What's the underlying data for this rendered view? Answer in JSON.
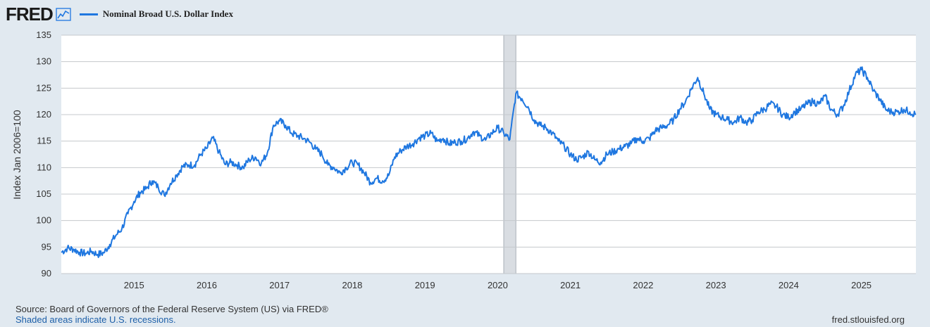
{
  "header": {
    "logo_text": "FRED",
    "logo_icon": "line-chart-icon",
    "series_label": "Nominal Broad U.S. Dollar Index"
  },
  "colors": {
    "series": "#1f77e0",
    "recession": "#d9dde2",
    "background": "#e1e9f0",
    "plot": "#ffffff",
    "grid": "#c4c8cc"
  },
  "footer": {
    "source": "Source: Board of Governors of the Federal Reserve System (US) via FRED®",
    "recession_note": "Shaded areas indicate U.S. recessions.",
    "site": "fred.stlouisfed.org"
  },
  "chart_data": {
    "type": "line",
    "title": "",
    "xlabel": "",
    "ylabel": "Index Jan 2006=100",
    "ylim": [
      90,
      135
    ],
    "xlim": [
      "2014-01",
      "2025-10"
    ],
    "yticks": [
      "90",
      "95",
      "100",
      "105",
      "110",
      "115",
      "120",
      "125",
      "130",
      "135"
    ],
    "xticks": [
      "2015",
      "2016",
      "2017",
      "2018",
      "2019",
      "2020",
      "2021",
      "2022",
      "2023",
      "2024",
      "2025"
    ],
    "grid": true,
    "legend_position": "top-left",
    "recessions": [
      {
        "start": "2020-02",
        "end": "2020-04"
      }
    ],
    "series": [
      {
        "name": "Nominal Broad U.S. Dollar Index",
        "x": [
          "2014-01",
          "2014-02",
          "2014-03",
          "2014-04",
          "2014-05",
          "2014-06",
          "2014-07",
          "2014-08",
          "2014-09",
          "2014-10",
          "2014-11",
          "2014-12",
          "2015-01",
          "2015-02",
          "2015-03",
          "2015-04",
          "2015-05",
          "2015-06",
          "2015-07",
          "2015-08",
          "2015-09",
          "2015-10",
          "2015-11",
          "2015-12",
          "2016-01",
          "2016-02",
          "2016-03",
          "2016-04",
          "2016-05",
          "2016-06",
          "2016-07",
          "2016-08",
          "2016-09",
          "2016-10",
          "2016-11",
          "2016-12",
          "2017-01",
          "2017-02",
          "2017-03",
          "2017-04",
          "2017-05",
          "2017-06",
          "2017-07",
          "2017-08",
          "2017-09",
          "2017-10",
          "2017-11",
          "2017-12",
          "2018-01",
          "2018-02",
          "2018-03",
          "2018-04",
          "2018-05",
          "2018-06",
          "2018-07",
          "2018-08",
          "2018-09",
          "2018-10",
          "2018-11",
          "2018-12",
          "2019-01",
          "2019-02",
          "2019-03",
          "2019-04",
          "2019-05",
          "2019-06",
          "2019-07",
          "2019-08",
          "2019-09",
          "2019-10",
          "2019-11",
          "2019-12",
          "2020-01",
          "2020-02",
          "2020-03",
          "2020-04",
          "2020-05",
          "2020-06",
          "2020-07",
          "2020-08",
          "2020-09",
          "2020-10",
          "2020-11",
          "2020-12",
          "2021-01",
          "2021-02",
          "2021-03",
          "2021-04",
          "2021-05",
          "2021-06",
          "2021-07",
          "2021-08",
          "2021-09",
          "2021-10",
          "2021-11",
          "2021-12",
          "2022-01",
          "2022-02",
          "2022-03",
          "2022-04",
          "2022-05",
          "2022-06",
          "2022-07",
          "2022-08",
          "2022-09",
          "2022-10",
          "2022-11",
          "2022-12",
          "2023-01",
          "2023-02",
          "2023-03",
          "2023-04",
          "2023-05",
          "2023-06",
          "2023-07",
          "2023-08",
          "2023-09",
          "2023-10",
          "2023-11",
          "2023-12",
          "2024-01",
          "2024-02",
          "2024-03",
          "2024-04",
          "2024-05",
          "2024-06",
          "2024-07",
          "2024-08",
          "2024-09",
          "2024-10",
          "2024-11",
          "2024-12",
          "2025-01",
          "2025-02",
          "2025-03",
          "2025-04",
          "2025-05",
          "2025-06",
          "2025-07",
          "2025-08",
          "2025-09",
          "2025-10"
        ],
        "values": [
          94.0,
          94.8,
          94.6,
          94.0,
          93.8,
          94.2,
          93.6,
          93.9,
          95.5,
          97.2,
          98.5,
          101.3,
          103.6,
          105.3,
          106.0,
          107.5,
          106.3,
          104.8,
          107.0,
          108.6,
          110.2,
          110.5,
          110.5,
          112.5,
          113.6,
          115.6,
          113.0,
          110.6,
          111.0,
          110.5,
          110.0,
          111.5,
          112.0,
          110.8,
          112.8,
          118.0,
          118.8,
          118.0,
          116.5,
          116.0,
          115.5,
          114.8,
          113.5,
          112.5,
          110.5,
          110.0,
          109.0,
          110.0,
          111.0,
          110.5,
          109.0,
          107.2,
          108.0,
          107.5,
          108.5,
          112.0,
          113.2,
          114.0,
          114.5,
          115.6,
          116.0,
          116.5,
          115.0,
          115.5,
          114.5,
          114.8,
          115.0,
          115.5,
          116.8,
          116.0,
          115.2,
          116.5,
          117.5,
          116.5,
          115.3,
          124.0,
          123.0,
          121.5,
          119.0,
          118.0,
          117.5,
          116.5,
          115.0,
          114.0,
          112.5,
          111.5,
          112.0,
          113.0,
          111.5,
          111.0,
          112.5,
          113.0,
          113.5,
          114.0,
          114.5,
          115.5,
          115.0,
          115.5,
          117.0,
          117.5,
          118.0,
          119.0,
          121.0,
          122.5,
          125.0,
          127.0,
          124.0,
          121.0,
          120.0,
          119.5,
          119.0,
          118.5,
          119.5,
          118.5,
          119.0,
          120.5,
          121.0,
          122.0,
          121.5,
          120.0,
          119.5,
          120.5,
          121.0,
          122.0,
          122.5,
          122.0,
          123.5,
          121.0,
          120.0,
          121.5,
          124.5,
          127.5,
          128.5,
          127.0,
          124.5,
          123.0,
          121.0,
          120.5,
          120.5,
          121.0,
          120.5,
          120.0
        ]
      }
    ]
  }
}
